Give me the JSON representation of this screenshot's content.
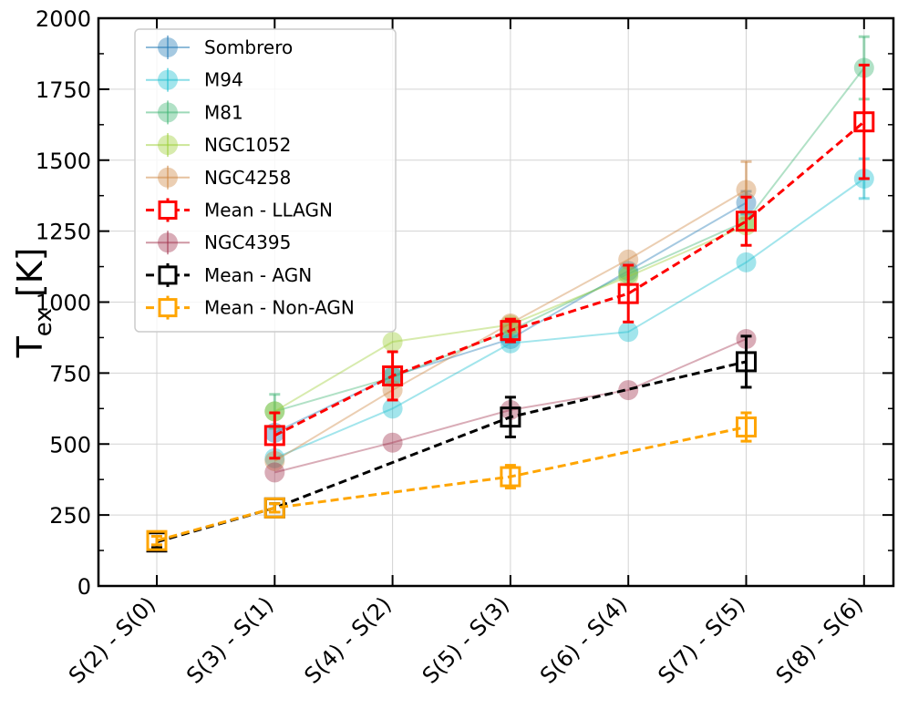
{
  "chart_data": {
    "type": "line",
    "categories": [
      "S(2) - S(0)",
      "S(3) - S(1)",
      "S(4) - S(2)",
      "S(5) - S(3)",
      "S(6) - S(4)",
      "S(7) - S(5)",
      "S(8) - S(6)"
    ],
    "ylabel": {
      "main": "T",
      "sub": "ex",
      "suffix": " [K]"
    },
    "ylim": [
      0,
      2000
    ],
    "yticks": [
      0,
      250,
      500,
      750,
      1000,
      1250,
      1500,
      1750,
      2000
    ],
    "grid": true,
    "legend_position": "top-left",
    "series": [
      {
        "name": "Sombrero",
        "color": "#1f77b4",
        "marker": "circle",
        "style": "solid",
        "values": [
          null,
          540,
          740,
          870,
          1110,
          1350,
          null
        ],
        "err": [
          null,
          0,
          0,
          0,
          0,
          40,
          null
        ]
      },
      {
        "name": "M94",
        "color": "#17becf",
        "marker": "circle",
        "style": "solid",
        "values": [
          null,
          450,
          625,
          855,
          895,
          1140,
          1435
        ],
        "err": [
          null,
          0,
          0,
          0,
          0,
          0,
          70
        ]
      },
      {
        "name": "M81",
        "color": "#3cb371",
        "marker": "circle",
        "style": "solid",
        "values": [
          null,
          615,
          735,
          900,
          1100,
          1285,
          1825
        ],
        "err": [
          null,
          60,
          0,
          0,
          0,
          0,
          110
        ]
      },
      {
        "name": "NGC1052",
        "color": "#9acd32",
        "marker": "circle",
        "style": "solid",
        "values": [
          null,
          615,
          860,
          920,
          1090,
          1270,
          null
        ],
        "err": [
          null,
          0,
          0,
          0,
          0,
          0,
          null
        ]
      },
      {
        "name": "NGC4258",
        "color": "#cd853f",
        "marker": "circle",
        "style": "solid",
        "values": [
          null,
          440,
          690,
          925,
          1150,
          1395,
          null
        ],
        "err": [
          null,
          0,
          0,
          0,
          0,
          100,
          null
        ]
      },
      {
        "name": "Mean - LLAGN",
        "color": "#ff0000",
        "marker": "square",
        "style": "dashed",
        "values": [
          null,
          530,
          740,
          900,
          1030,
          1285,
          1635
        ],
        "err": [
          null,
          80,
          85,
          40,
          100,
          85,
          200
        ]
      },
      {
        "name": "NGC4395",
        "color": "#a0304a",
        "marker": "circle",
        "style": "solid",
        "values": [
          null,
          400,
          505,
          620,
          690,
          870,
          null
        ],
        "err": [
          null,
          0,
          0,
          0,
          0,
          0,
          null
        ]
      },
      {
        "name": "Mean - AGN",
        "color": "#000000",
        "marker": "square",
        "style": "dashed",
        "values": [
          155,
          275,
          null,
          595,
          null,
          790,
          null
        ],
        "err": [
          20,
          15,
          null,
          70,
          null,
          90,
          null
        ]
      },
      {
        "name": "Mean - Non-AGN",
        "color": "#ffa500",
        "marker": "square",
        "style": "dashed",
        "values": [
          160,
          275,
          null,
          385,
          null,
          560,
          null
        ],
        "err": [
          15,
          15,
          null,
          40,
          null,
          50,
          null
        ]
      }
    ]
  }
}
